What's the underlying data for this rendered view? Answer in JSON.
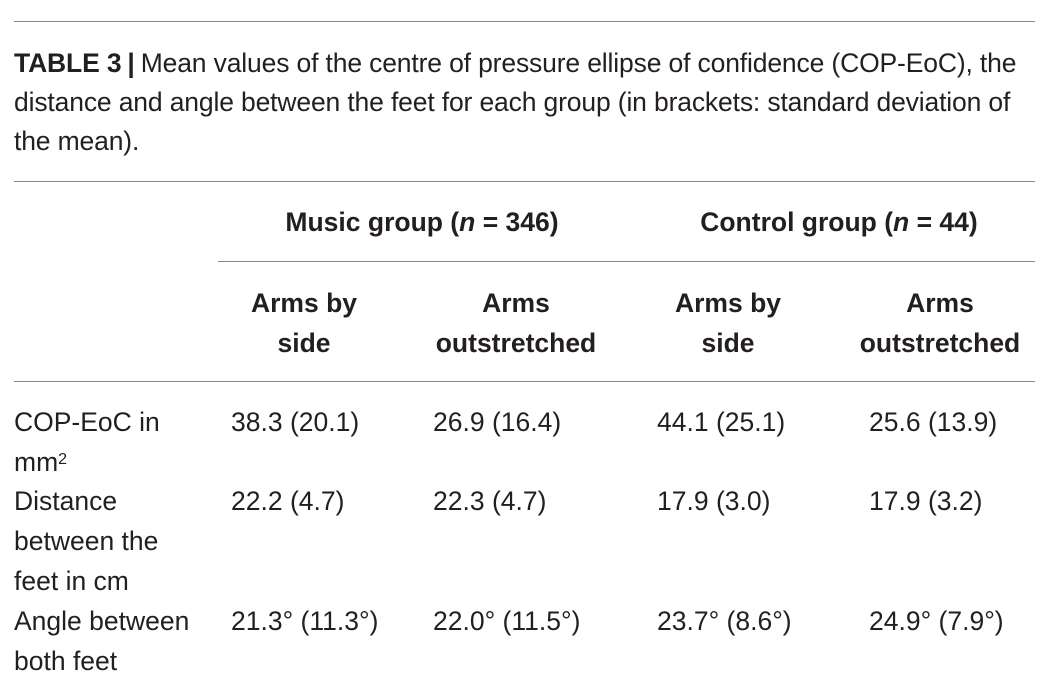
{
  "caption": {
    "label": "TABLE 3",
    "separator": "|",
    "text": "Mean values of the centre of pressure ellipse of confidence (COP-EoC), the distance and angle between the feet for each group (in brackets: standard deviation of the mean)."
  },
  "groups": [
    {
      "prefix": "Music group (",
      "n_symbol": "n",
      "suffix": " = 346)"
    },
    {
      "prefix": "Control group (",
      "n_symbol": "n",
      "suffix": " = 44)"
    }
  ],
  "subheaders": [
    {
      "line1": "Arms by",
      "line2": "side"
    },
    {
      "line1": "Arms",
      "line2": "outstretched"
    },
    {
      "line1": "Arms by",
      "line2": "side"
    },
    {
      "line1": "Arms",
      "line2": "outstretched"
    }
  ],
  "rows": [
    {
      "label_line1": "COP-EoC in",
      "label_line2": "mm",
      "label_sup": "2",
      "values": [
        "38.3 (20.1)",
        "26.9 (16.4)",
        "44.1 (25.1)",
        "25.6 (13.9)"
      ]
    },
    {
      "label_line1": "Distance",
      "label_line2": "between the",
      "label_line3": "feet in cm",
      "values": [
        "22.2 (4.7)",
        "22.3 (4.7)",
        "17.9 (3.0)",
        "17.9 (3.2)"
      ]
    },
    {
      "label_line1": "Angle between",
      "label_line2": "both feet",
      "values": [
        "21.3° (11.3°)",
        "22.0° (11.5°)",
        "23.7° (8.6°)",
        "24.9° (7.9°)"
      ]
    }
  ]
}
